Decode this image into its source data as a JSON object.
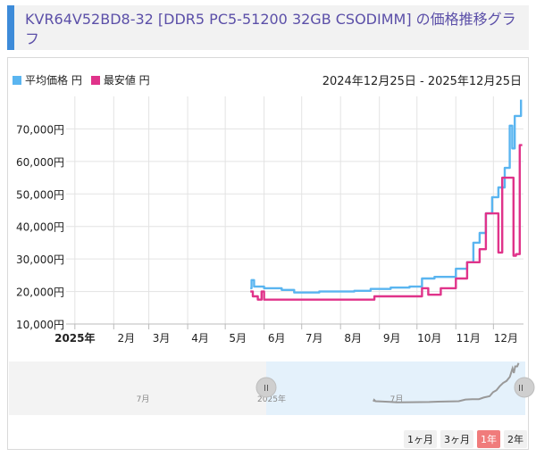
{
  "header": {
    "title": "KVR64V52BD8-32 [DDR5 PC5-51200 32GB CSODIMM] の価格推移グラフ"
  },
  "legend": {
    "items": [
      {
        "label": "平均価格 円",
        "color": "#5ab5f0"
      },
      {
        "label": "最安値 円",
        "color": "#e0338a"
      }
    ]
  },
  "date_range": "2024年12月25日 - 2025年12月25日",
  "zoom_buttons": [
    {
      "label": "1ヶ月",
      "active": false
    },
    {
      "label": "3ヶ月",
      "active": false
    },
    {
      "label": "1年",
      "active": true
    },
    {
      "label": "2年",
      "active": false
    }
  ],
  "navigator": {
    "labels": [
      "7月",
      "2025年",
      "7月"
    ],
    "handle_glyph": "II"
  },
  "chart_data": {
    "type": "line",
    "x_ticks": [
      "2025年",
      "2月",
      "3月",
      "4月",
      "5月",
      "6月",
      "7月",
      "8月",
      "9月",
      "10月",
      "11月",
      "12月"
    ],
    "y_ticks": [
      "10,000円",
      "20,000円",
      "30,000円",
      "40,000円",
      "50,000円",
      "60,000円",
      "70,000円"
    ],
    "ylim": [
      10000,
      80000
    ],
    "grid": true,
    "series": [
      {
        "name": "平均価格 円",
        "color": "#5ab5f0",
        "points": [
          [
            "2025-05-21",
            21000
          ],
          [
            "2025-05-22",
            23500
          ],
          [
            "2025-05-24",
            21500
          ],
          [
            "2025-06-01",
            21000
          ],
          [
            "2025-06-15",
            20500
          ],
          [
            "2025-06-25",
            19700
          ],
          [
            "2025-07-15",
            20000
          ],
          [
            "2025-08-12",
            20200
          ],
          [
            "2025-08-25",
            20800
          ],
          [
            "2025-09-10",
            21200
          ],
          [
            "2025-09-25",
            21500
          ],
          [
            "2025-10-05",
            24000
          ],
          [
            "2025-10-15",
            24500
          ],
          [
            "2025-10-25",
            24500
          ],
          [
            "2025-11-01",
            27000
          ],
          [
            "2025-11-10",
            29000
          ],
          [
            "2025-11-15",
            35000
          ],
          [
            "2025-11-20",
            38000
          ],
          [
            "2025-11-25",
            44000
          ],
          [
            "2025-11-30",
            49000
          ],
          [
            "2025-12-05",
            52000
          ],
          [
            "2025-12-10",
            58000
          ],
          [
            "2025-12-14",
            71000
          ],
          [
            "2025-12-16",
            64000
          ],
          [
            "2025-12-18",
            74000
          ],
          [
            "2025-12-21",
            74000
          ],
          [
            "2025-12-23",
            79000
          ]
        ]
      },
      {
        "name": "最安値 円",
        "color": "#e0338a",
        "points": [
          [
            "2025-05-21",
            20000
          ],
          [
            "2025-05-23",
            18500
          ],
          [
            "2025-05-27",
            17500
          ],
          [
            "2025-05-30",
            20000
          ],
          [
            "2025-06-01",
            17500
          ],
          [
            "2025-06-10",
            17500
          ],
          [
            "2025-07-15",
            17500
          ],
          [
            "2025-08-25",
            17500
          ],
          [
            "2025-08-28",
            18500
          ],
          [
            "2025-09-20",
            18500
          ],
          [
            "2025-10-01",
            18500
          ],
          [
            "2025-10-05",
            21000
          ],
          [
            "2025-10-10",
            19000
          ],
          [
            "2025-10-20",
            21000
          ],
          [
            "2025-10-30",
            21000
          ],
          [
            "2025-11-01",
            24000
          ],
          [
            "2025-11-10",
            29000
          ],
          [
            "2025-11-20",
            33000
          ],
          [
            "2025-11-25",
            44000
          ],
          [
            "2025-12-01",
            44000
          ],
          [
            "2025-12-05",
            32000
          ],
          [
            "2025-12-08",
            55000
          ],
          [
            "2025-12-15",
            55000
          ],
          [
            "2025-12-17",
            31000
          ],
          [
            "2025-12-19",
            31500
          ],
          [
            "2025-12-22",
            65000
          ],
          [
            "2025-12-24",
            65000
          ]
        ]
      }
    ]
  }
}
